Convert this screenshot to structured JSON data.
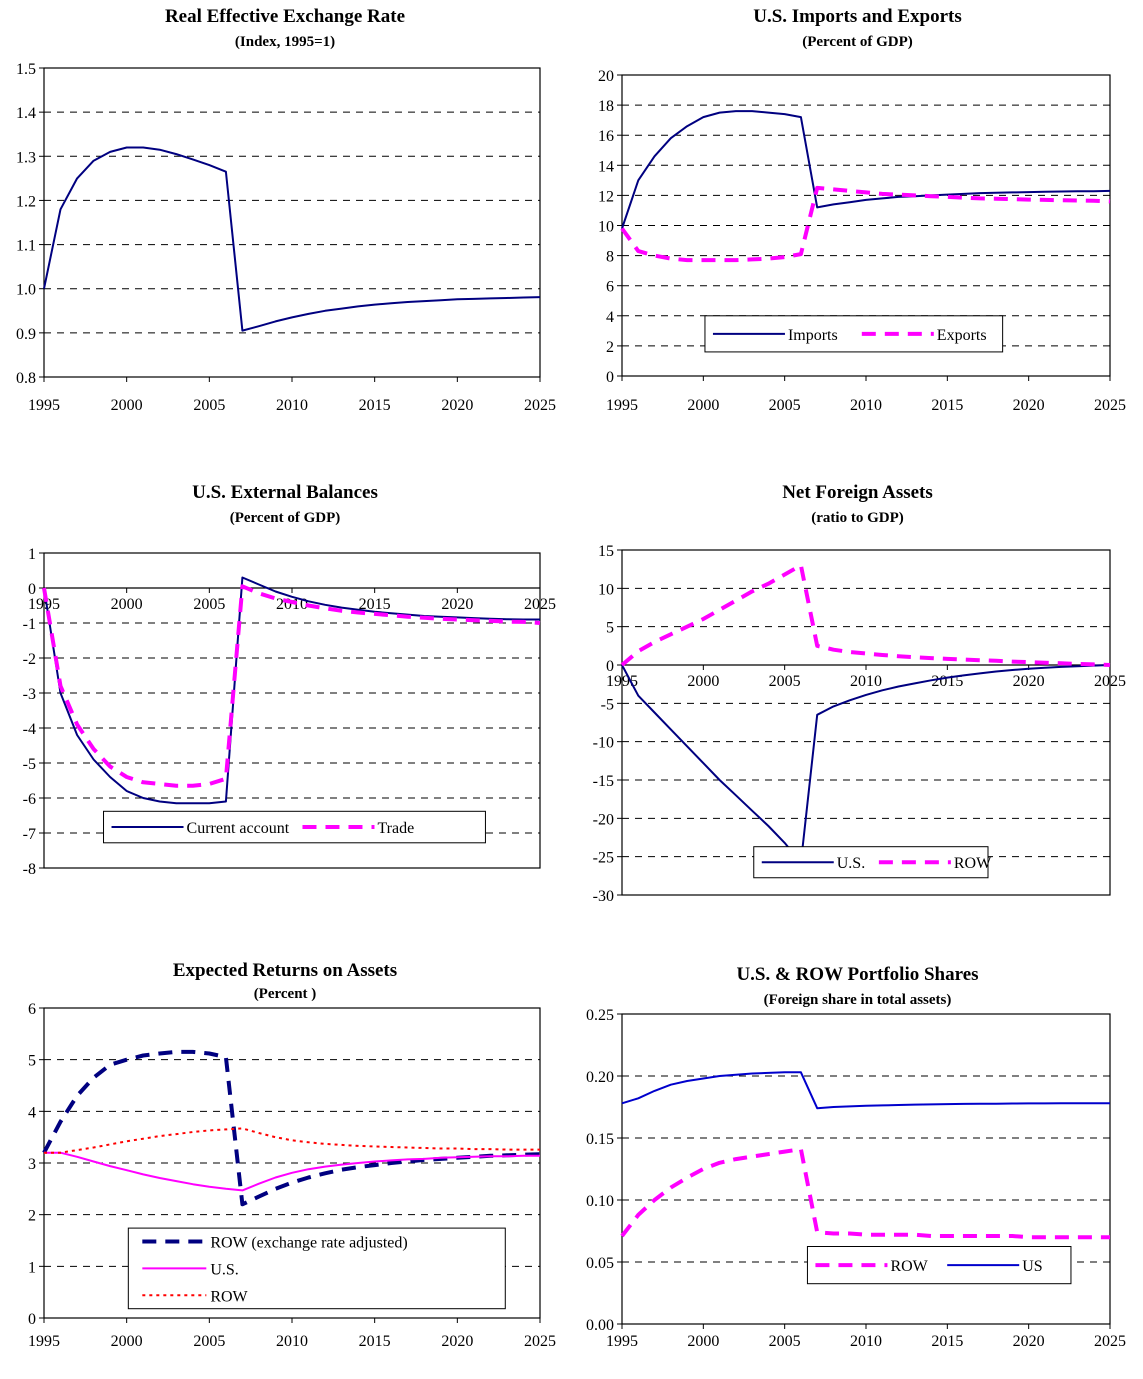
{
  "chart_data": [
    {
      "type": "line",
      "title": "Real Effective Exchange Rate",
      "subtitle": "(Index, 1995=1)",
      "xlim": [
        1995,
        2025
      ],
      "x_ticks": [
        1995,
        2000,
        2005,
        2010,
        2015,
        2020,
        2025
      ],
      "ylim": [
        0.8,
        1.5
      ],
      "y_ticks": [
        "0.8",
        "0.9",
        "1.0",
        "1.1",
        "1.2",
        "1.3",
        "1.4",
        "1.5"
      ],
      "grid": true,
      "x_axis_at_zero": false,
      "series": [
        {
          "name": "",
          "color": "#000080",
          "dash": "solid",
          "width": 2,
          "x": [
            1995,
            1996,
            1997,
            1998,
            1999,
            2000,
            2001,
            2002,
            2003,
            2004,
            2005,
            2006,
            2007,
            2008,
            2009,
            2010,
            2011,
            2012,
            2013,
            2014,
            2015,
            2016,
            2017,
            2018,
            2019,
            2020,
            2021,
            2022,
            2023,
            2024,
            2025
          ],
          "y": [
            1.0,
            1.18,
            1.25,
            1.29,
            1.31,
            1.32,
            1.32,
            1.315,
            1.305,
            1.293,
            1.28,
            1.265,
            0.905,
            0.915,
            0.926,
            0.935,
            0.943,
            0.95,
            0.955,
            0.96,
            0.964,
            0.967,
            0.97,
            0.972,
            0.974,
            0.976,
            0.977,
            0.978,
            0.979,
            0.98,
            0.981
          ]
        }
      ]
    },
    {
      "type": "line",
      "title": "U.S. Imports and Exports",
      "subtitle": "(Percent of GDP)",
      "xlim": [
        1995,
        2025
      ],
      "x_ticks": [
        1995,
        2000,
        2005,
        2010,
        2015,
        2020,
        2025
      ],
      "ylim": [
        0,
        20
      ],
      "y_ticks": [
        "0",
        "2",
        "4",
        "6",
        "8",
        "10",
        "12",
        "14",
        "16",
        "18",
        "20"
      ],
      "grid": true,
      "x_axis_at_zero": false,
      "legend": {
        "position": "bottom-center",
        "box": [
          0.17,
          0.8,
          0.78,
          0.92
        ]
      },
      "series": [
        {
          "name": "Imports",
          "color": "#000080",
          "dash": "solid",
          "width": 2,
          "x": [
            1995,
            1996,
            1997,
            1998,
            1999,
            2000,
            2001,
            2002,
            2003,
            2004,
            2005,
            2006,
            2007,
            2008,
            2009,
            2010,
            2011,
            2012,
            2013,
            2014,
            2015,
            2016,
            2017,
            2018,
            2019,
            2020,
            2021,
            2022,
            2023,
            2024,
            2025
          ],
          "y": [
            9.8,
            13.0,
            14.6,
            15.8,
            16.6,
            17.2,
            17.5,
            17.6,
            17.6,
            17.5,
            17.4,
            17.2,
            11.2,
            11.4,
            11.55,
            11.7,
            11.8,
            11.9,
            11.95,
            12.0,
            12.05,
            12.1,
            12.15,
            12.18,
            12.2,
            12.22,
            12.24,
            12.26,
            12.27,
            12.28,
            12.3
          ]
        },
        {
          "name": "Exports",
          "color": "#ff00ff",
          "dash": "dashed",
          "width": 4,
          "x": [
            1995,
            1996,
            1997,
            1998,
            1999,
            2000,
            2001,
            2002,
            2003,
            2004,
            2005,
            2006,
            2007,
            2008,
            2009,
            2010,
            2011,
            2012,
            2013,
            2014,
            2015,
            2016,
            2017,
            2018,
            2019,
            2020,
            2021,
            2022,
            2023,
            2024,
            2025
          ],
          "y": [
            9.8,
            8.3,
            8.0,
            7.8,
            7.7,
            7.7,
            7.7,
            7.7,
            7.75,
            7.8,
            7.9,
            8.1,
            12.5,
            12.4,
            12.3,
            12.2,
            12.1,
            12.05,
            12.0,
            11.95,
            11.9,
            11.85,
            11.8,
            11.78,
            11.75,
            11.72,
            11.7,
            11.68,
            11.66,
            11.65,
            11.6
          ]
        }
      ]
    },
    {
      "type": "line",
      "title": "U.S. External Balances",
      "subtitle": "(Percent of GDP)",
      "xlim": [
        1995,
        2025
      ],
      "x_ticks": [
        1995,
        2000,
        2005,
        2010,
        2015,
        2020,
        2025
      ],
      "ylim": [
        -8,
        1
      ],
      "y_ticks": [
        "-8",
        "-7",
        "-6",
        "-5",
        "-4",
        "-3",
        "-2",
        "-1",
        "0",
        "1"
      ],
      "grid": true,
      "x_axis_at_zero": true,
      "legend": {
        "position": "bottom-center",
        "box": [
          0.12,
          0.82,
          0.89,
          0.92
        ]
      },
      "series": [
        {
          "name": "Current account",
          "color": "#000080",
          "dash": "solid",
          "width": 2,
          "x": [
            1995,
            1996,
            1997,
            1998,
            1999,
            2000,
            2001,
            2002,
            2003,
            2004,
            2005,
            2006,
            2007,
            2008,
            2009,
            2010,
            2011,
            2012,
            2013,
            2014,
            2015,
            2016,
            2017,
            2018,
            2019,
            2020,
            2021,
            2022,
            2023,
            2024,
            2025
          ],
          "y": [
            0.0,
            -3.0,
            -4.2,
            -4.9,
            -5.4,
            -5.8,
            -6.0,
            -6.1,
            -6.15,
            -6.15,
            -6.15,
            -6.1,
            0.3,
            0.1,
            -0.1,
            -0.25,
            -0.38,
            -0.48,
            -0.56,
            -0.62,
            -0.68,
            -0.72,
            -0.76,
            -0.8,
            -0.82,
            -0.84,
            -0.86,
            -0.88,
            -0.89,
            -0.9,
            -0.9
          ]
        },
        {
          "name": "Trade",
          "color": "#ff00ff",
          "dash": "dashed",
          "width": 4,
          "x": [
            1995,
            1996,
            1997,
            1998,
            1999,
            2000,
            2001,
            2002,
            2003,
            2004,
            2005,
            2006,
            2007,
            2008,
            2009,
            2010,
            2011,
            2012,
            2013,
            2014,
            2015,
            2016,
            2017,
            2018,
            2019,
            2020,
            2021,
            2022,
            2023,
            2024,
            2025
          ],
          "y": [
            0.0,
            -2.8,
            -3.9,
            -4.6,
            -5.1,
            -5.4,
            -5.55,
            -5.6,
            -5.65,
            -5.65,
            -5.6,
            -5.45,
            0.05,
            -0.15,
            -0.3,
            -0.4,
            -0.5,
            -0.58,
            -0.65,
            -0.7,
            -0.74,
            -0.78,
            -0.82,
            -0.85,
            -0.88,
            -0.9,
            -0.92,
            -0.94,
            -0.96,
            -0.97,
            -1.0
          ]
        }
      ]
    },
    {
      "type": "line",
      "title": "Net Foreign Assets",
      "subtitle": "(ratio to GDP)",
      "xlim": [
        1995,
        2025
      ],
      "x_ticks": [
        1995,
        2000,
        2005,
        2010,
        2015,
        2020,
        2025
      ],
      "ylim": [
        -30,
        15
      ],
      "y_ticks": [
        "-30",
        "-25",
        "-20",
        "-15",
        "-10",
        "-5",
        "0",
        "5",
        "10",
        "15"
      ],
      "grid": true,
      "x_axis_at_zero": true,
      "legend": {
        "position": "bottom-center",
        "box": [
          0.27,
          0.86,
          0.75,
          0.95
        ]
      },
      "series": [
        {
          "name": "U.S.",
          "color": "#000080",
          "dash": "solid",
          "width": 2,
          "x": [
            1995,
            1996,
            1997,
            1998,
            1999,
            2000,
            2001,
            2002,
            2003,
            2004,
            2005,
            2006,
            2007,
            2008,
            2009,
            2010,
            2011,
            2012,
            2013,
            2014,
            2015,
            2016,
            2017,
            2018,
            2019,
            2020,
            2021,
            2022,
            2023,
            2024,
            2025
          ],
          "y": [
            0.0,
            -4.0,
            -6.2,
            -8.4,
            -10.6,
            -12.8,
            -15.0,
            -17.0,
            -19.0,
            -21.0,
            -23.2,
            -25.8,
            -6.5,
            -5.4,
            -4.6,
            -3.9,
            -3.3,
            -2.8,
            -2.4,
            -2.0,
            -1.65,
            -1.35,
            -1.1,
            -0.85,
            -0.65,
            -0.5,
            -0.35,
            -0.25,
            -0.15,
            -0.08,
            0.0
          ]
        },
        {
          "name": "ROW",
          "color": "#ff00ff",
          "dash": "dashed",
          "width": 4,
          "x": [
            1995,
            1996,
            1997,
            1998,
            1999,
            2000,
            2001,
            2002,
            2003,
            2004,
            2005,
            2006,
            2007,
            2008,
            2009,
            2010,
            2011,
            2012,
            2013,
            2014,
            2015,
            2016,
            2017,
            2018,
            2019,
            2020,
            2021,
            2022,
            2023,
            2024,
            2025
          ],
          "y": [
            0.0,
            1.8,
            3.0,
            4.0,
            5.0,
            6.0,
            7.2,
            8.4,
            9.6,
            10.6,
            11.8,
            13.0,
            2.5,
            2.0,
            1.7,
            1.5,
            1.3,
            1.15,
            1.0,
            0.9,
            0.8,
            0.7,
            0.62,
            0.55,
            0.45,
            0.38,
            0.3,
            0.22,
            0.15,
            0.08,
            0.0
          ]
        }
      ]
    },
    {
      "type": "line",
      "title": "Expected Returns on Assets",
      "subtitle": "(Percent )",
      "xlim": [
        1995,
        2025
      ],
      "x_ticks": [
        1995,
        2000,
        2005,
        2010,
        2015,
        2020,
        2025
      ],
      "ylim": [
        0,
        6
      ],
      "y_ticks": [
        "0",
        "1",
        "2",
        "3",
        "4",
        "5",
        "6"
      ],
      "grid": true,
      "x_axis_at_zero": false,
      "legend": {
        "position": "bottom-center",
        "box": [
          0.17,
          0.71,
          0.93,
          0.97
        ],
        "stacked": true
      },
      "series": [
        {
          "name": "ROW (exchange rate adjusted)",
          "color": "#000080",
          "dash": "dashed",
          "width": 4,
          "x": [
            1995,
            1996,
            1997,
            1998,
            1999,
            2000,
            2001,
            2002,
            2003,
            2004,
            2005,
            2006,
            2007,
            2008,
            2009,
            2010,
            2011,
            2012,
            2013,
            2014,
            2015,
            2016,
            2017,
            2018,
            2019,
            2020,
            2021,
            2022,
            2023,
            2024,
            2025
          ],
          "y": [
            3.2,
            3.8,
            4.3,
            4.65,
            4.9,
            5.0,
            5.08,
            5.12,
            5.15,
            5.15,
            5.12,
            5.05,
            2.2,
            2.35,
            2.5,
            2.62,
            2.72,
            2.8,
            2.87,
            2.92,
            2.96,
            3.0,
            3.03,
            3.06,
            3.08,
            3.1,
            3.12,
            3.14,
            3.15,
            3.16,
            3.17
          ]
        },
        {
          "name": "U.S.",
          "color": "#ff00ff",
          "dash": "solid",
          "width": 2,
          "x": [
            1995,
            1996,
            1997,
            1998,
            1999,
            2000,
            2001,
            2002,
            2003,
            2004,
            2005,
            2006,
            2007,
            2008,
            2009,
            2010,
            2011,
            2012,
            2013,
            2014,
            2015,
            2016,
            2017,
            2018,
            2019,
            2020,
            2021,
            2022,
            2023,
            2024,
            2025
          ],
          "y": [
            3.2,
            3.2,
            3.12,
            3.03,
            2.94,
            2.86,
            2.78,
            2.71,
            2.65,
            2.59,
            2.54,
            2.5,
            2.47,
            2.6,
            2.72,
            2.81,
            2.88,
            2.93,
            2.97,
            3.0,
            3.03,
            3.05,
            3.07,
            3.08,
            3.1,
            3.11,
            3.12,
            3.13,
            3.13,
            3.14,
            3.14
          ]
        },
        {
          "name": "ROW",
          "color": "#ff0000",
          "dash": "dotted",
          "width": 2,
          "x": [
            1995,
            1996,
            1997,
            1998,
            1999,
            2000,
            2001,
            2002,
            2003,
            2004,
            2005,
            2006,
            2007,
            2008,
            2009,
            2010,
            2011,
            2012,
            2013,
            2014,
            2015,
            2016,
            2017,
            2018,
            2019,
            2020,
            2021,
            2022,
            2023,
            2024,
            2025
          ],
          "y": [
            3.2,
            3.2,
            3.25,
            3.3,
            3.36,
            3.42,
            3.47,
            3.52,
            3.56,
            3.6,
            3.63,
            3.65,
            3.67,
            3.58,
            3.5,
            3.44,
            3.4,
            3.37,
            3.35,
            3.33,
            3.32,
            3.31,
            3.3,
            3.29,
            3.28,
            3.28,
            3.27,
            3.27,
            3.26,
            3.26,
            3.26
          ]
        }
      ]
    },
    {
      "type": "line",
      "title": "U.S. & ROW Portfolio Shares",
      "subtitle": "(Foreign share in total assets)",
      "xlim": [
        1995,
        2025
      ],
      "x_ticks": [
        1995,
        2000,
        2005,
        2010,
        2015,
        2020,
        2025
      ],
      "ylim": [
        0,
        0.25
      ],
      "y_ticks": [
        "0.00",
        "0.05",
        "0.10",
        "0.15",
        "0.20",
        "0.25"
      ],
      "grid": true,
      "x_axis_at_zero": false,
      "legend": {
        "position": "bottom-center",
        "box": [
          0.38,
          0.75,
          0.92,
          0.87
        ]
      },
      "series": [
        {
          "name": "ROW",
          "color": "#ff00ff",
          "dash": "dashed",
          "width": 4,
          "x": [
            1995,
            1996,
            1997,
            1998,
            1999,
            2000,
            2001,
            2002,
            2003,
            2004,
            2005,
            2006,
            2007,
            2008,
            2009,
            2010,
            2011,
            2012,
            2013,
            2014,
            2015,
            2016,
            2017,
            2018,
            2019,
            2020,
            2021,
            2022,
            2023,
            2024,
            2025
          ],
          "y": [
            0.071,
            0.088,
            0.1,
            0.11,
            0.118,
            0.125,
            0.13,
            0.133,
            0.135,
            0.137,
            0.139,
            0.141,
            0.074,
            0.073,
            0.073,
            0.072,
            0.072,
            0.072,
            0.072,
            0.071,
            0.071,
            0.071,
            0.071,
            0.071,
            0.071,
            0.07,
            0.07,
            0.07,
            0.07,
            0.07,
            0.07
          ]
        },
        {
          "name": "US",
          "color": "#0000cc",
          "dash": "solid",
          "width": 2,
          "x": [
            1995,
            1996,
            1997,
            1998,
            1999,
            2000,
            2001,
            2002,
            2003,
            2004,
            2005,
            2006,
            2007,
            2008,
            2009,
            2010,
            2011,
            2012,
            2013,
            2014,
            2015,
            2016,
            2017,
            2018,
            2019,
            2020,
            2021,
            2022,
            2023,
            2024,
            2025
          ],
          "y": [
            0.178,
            0.182,
            0.188,
            0.193,
            0.196,
            0.198,
            0.2,
            0.201,
            0.202,
            0.2025,
            0.203,
            0.203,
            0.174,
            0.175,
            0.1755,
            0.176,
            0.1763,
            0.1766,
            0.1769,
            0.1771,
            0.1773,
            0.1775,
            0.1776,
            0.1777,
            0.1778,
            0.1779,
            0.1779,
            0.178,
            0.178,
            0.178,
            0.178
          ]
        }
      ]
    }
  ]
}
